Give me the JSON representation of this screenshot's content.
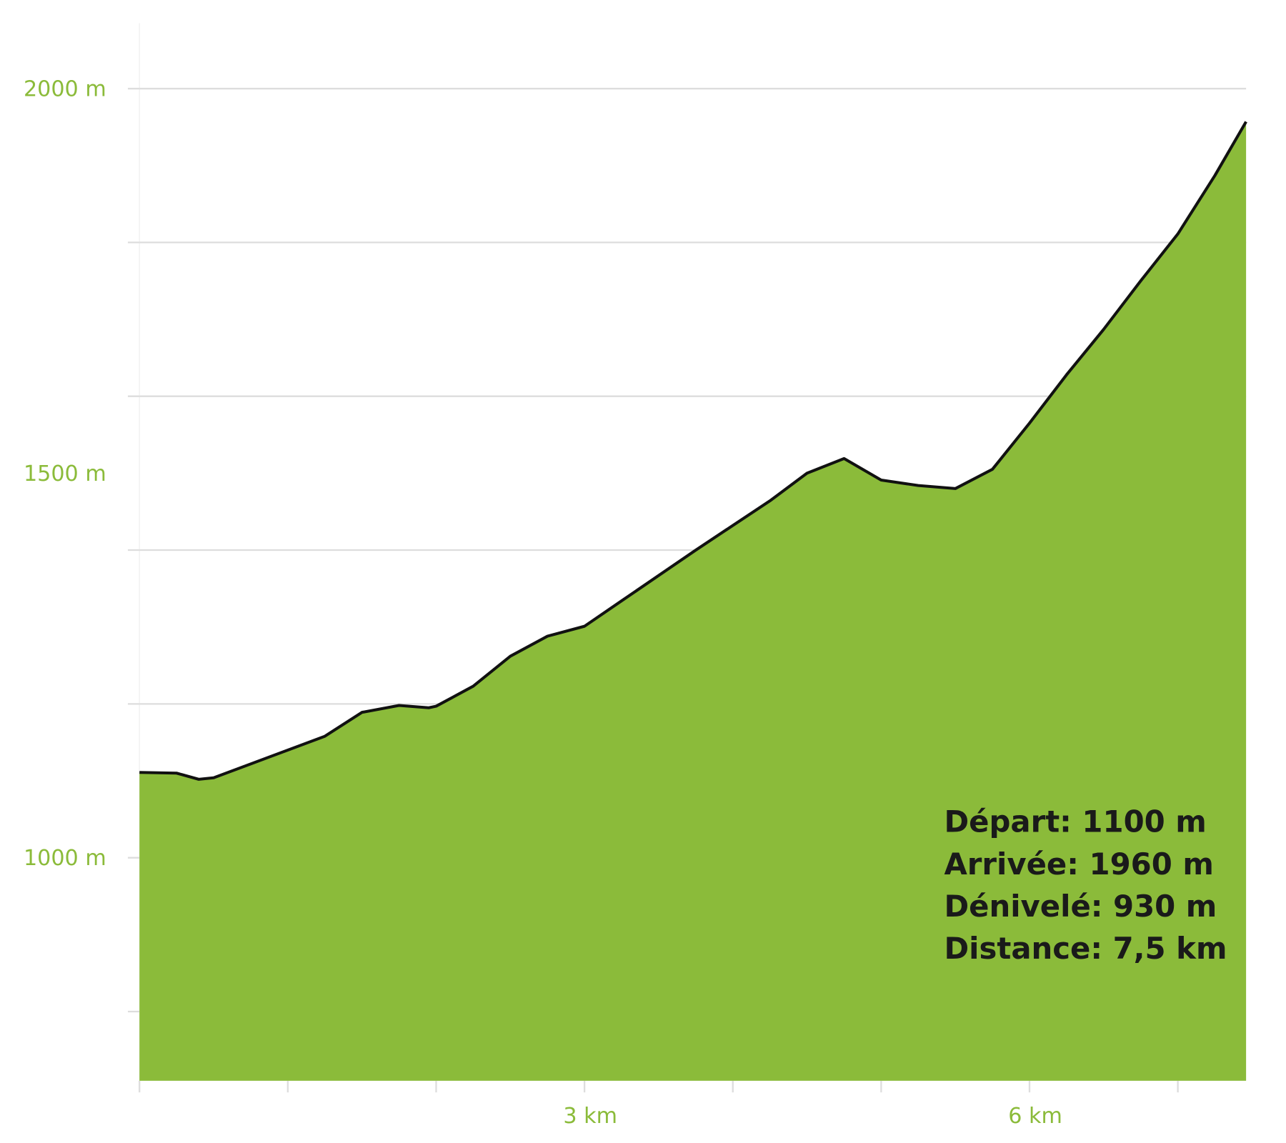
{
  "chart_data": {
    "type": "area",
    "x": [
      0,
      0.25,
      0.4,
      0.5,
      0.75,
      1.0,
      1.25,
      1.5,
      1.75,
      1.95,
      2.0,
      2.25,
      2.5,
      2.75,
      3.0,
      3.25,
      3.5,
      3.75,
      4.0,
      4.25,
      4.5,
      4.75,
      5.0,
      5.25,
      5.5,
      5.75,
      6.0,
      6.25,
      6.5,
      6.75,
      7.0,
      7.25,
      7.46
    ],
    "series": [
      {
        "color": "#8bbb3a",
        "line_color": "#111111",
        "values": [
          1111,
          1110,
          1102,
          1104,
          1122,
          1140,
          1158,
          1189,
          1198,
          1195,
          1197,
          1223,
          1262,
          1288,
          1301,
          1334,
          1367,
          1400,
          1432,
          1464,
          1500,
          1519,
          1491,
          1484,
          1480,
          1505,
          1565,
          1628,
          1687,
          1750,
          1811,
          1887,
          1957
        ]
      }
    ],
    "xlim": [
      0,
      7.46
    ],
    "xticks": [
      {
        "value": 3,
        "label": "3 km"
      },
      {
        "value": 6,
        "label": "6 km"
      }
    ],
    "xminor": [
      0,
      1,
      2,
      3,
      4,
      5,
      6,
      7
    ],
    "ylim": [
      710,
      2085
    ],
    "yticks": [
      {
        "value": 1000,
        "label": "1000 m"
      },
      {
        "value": 1500,
        "label": "1500 m"
      },
      {
        "value": 2000,
        "label": "2000 m"
      }
    ],
    "ygrid": [
      1200,
      1400,
      1600,
      1800,
      2000
    ],
    "yminor": [
      800,
      1000,
      1200,
      1400,
      1600,
      1800,
      2000
    ],
    "annotations": [
      "Départ: 1100 m",
      "Arrivée: 1960 m",
      "Dénivelé: 930 m",
      "Distance: 7,5 km"
    ]
  }
}
